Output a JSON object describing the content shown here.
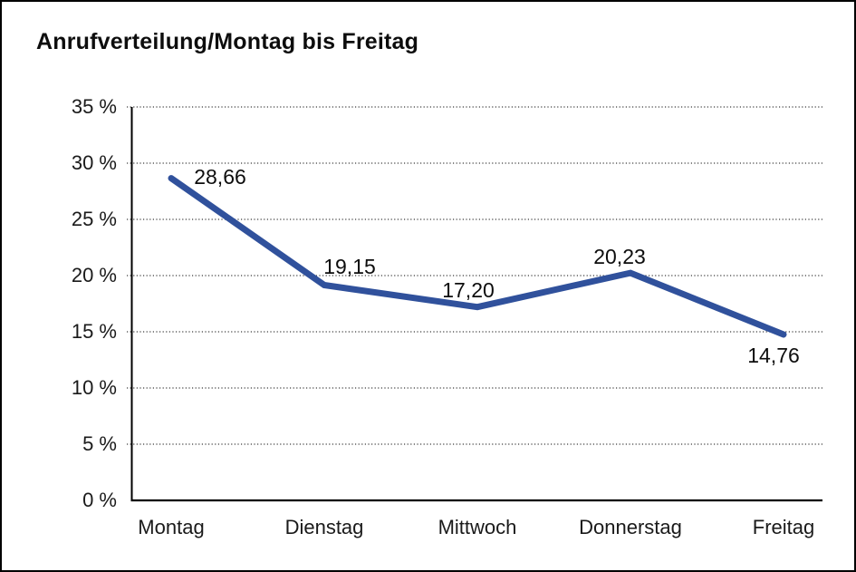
{
  "page": {
    "background": "#ffffff",
    "border_color": "#000000"
  },
  "chart_data": {
    "type": "line",
    "title": "Anrufverteilung/Montag bis Freitag",
    "categories": [
      "Montag",
      "Dienstag",
      "Mittwoch",
      "Donnerstag",
      "Freitag"
    ],
    "values": [
      28.66,
      19.15,
      17.2,
      20.23,
      14.76
    ],
    "value_labels": [
      "28,66",
      "19,15",
      "17,20",
      "20,23",
      "14,76"
    ],
    "ylim": [
      0,
      35
    ],
    "y_tick_step": 5,
    "y_ticks": [
      {
        "value": 35,
        "label": "35 %"
      },
      {
        "value": 30,
        "label": "30 %"
      },
      {
        "value": 25,
        "label": "25 %"
      },
      {
        "value": 20,
        "label": "20 %"
      },
      {
        "value": 15,
        "label": "15 %"
      },
      {
        "value": 10,
        "label": "10 %"
      },
      {
        "value": 5,
        "label": "5 %"
      },
      {
        "value": 0,
        "label": "0 %"
      }
    ],
    "xlabel": "",
    "ylabel": "",
    "grid": "horizontal-dotted",
    "legend": "none",
    "line_color": "#30519C",
    "grid_color": "#3c3c3c",
    "axis_color": "#000000",
    "text_color": "#1a1a1a"
  }
}
